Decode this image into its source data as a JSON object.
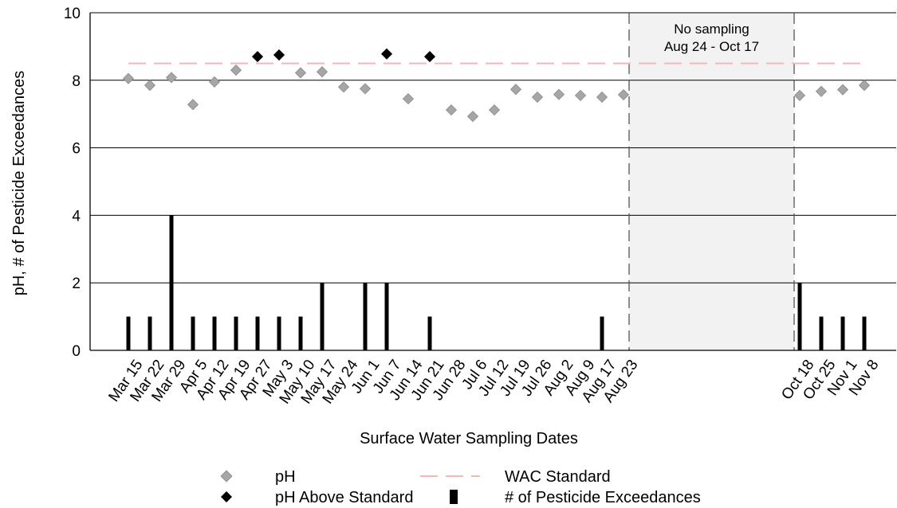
{
  "chart_data": {
    "type": "bar",
    "title": "",
    "xlabel": "Surface Water Sampling Dates",
    "ylabel": "pH, # of Pesticide Exceedances",
    "ylim": [
      0,
      10
    ],
    "yticks": [
      "0",
      "2",
      "4",
      "6",
      "8",
      "10"
    ],
    "grid": "horizontal",
    "categories": [
      "Mar 15",
      "Mar 22",
      "Mar 29",
      "Apr 5",
      "Apr 12",
      "Apr 19",
      "Apr 27",
      "May 3",
      "May 10",
      "May 17",
      "May 24",
      "Jun 1",
      "Jun 7",
      "Jun 14",
      "Jun 21",
      "Jun 28",
      "Jul 6",
      "Jul 12",
      "Jul 19",
      "Jul 26",
      "Aug 2",
      "Aug 9",
      "Aug 17",
      "Aug 23",
      "Oct 18",
      "Oct 25",
      "Nov 1",
      "Nov 8"
    ],
    "series": [
      {
        "name": "pH",
        "type": "scatter",
        "color": "#a6a6a6",
        "values": [
          8.05,
          7.85,
          8.08,
          7.28,
          7.95,
          8.3,
          null,
          null,
          8.22,
          8.25,
          7.8,
          7.75,
          null,
          7.45,
          null,
          7.12,
          6.93,
          7.12,
          7.73,
          7.5,
          7.58,
          7.55,
          7.5,
          7.57,
          7.55,
          7.67,
          7.72,
          7.85
        ]
      },
      {
        "name": "pH Above Standard",
        "type": "scatter",
        "color": "#000000",
        "values": [
          null,
          null,
          null,
          null,
          null,
          null,
          8.7,
          8.75,
          null,
          null,
          null,
          null,
          8.78,
          null,
          8.7,
          null,
          null,
          null,
          null,
          null,
          null,
          null,
          null,
          null,
          null,
          null,
          null,
          null
        ]
      },
      {
        "name": "# of Pesticide Exceedances",
        "type": "bar",
        "color": "#000000",
        "values": [
          1,
          1,
          4,
          1,
          1,
          1,
          1,
          1,
          1,
          2,
          0,
          2,
          2,
          0,
          1,
          0,
          0,
          0,
          0,
          0,
          0,
          0,
          1,
          0,
          2,
          1,
          1,
          1
        ]
      },
      {
        "name": "WAC Standard",
        "type": "line",
        "color": "#f2b8b5",
        "value": 8.5
      }
    ],
    "annotation": {
      "line1": "No sampling",
      "line2": "Aug 24 - Oct 17"
    },
    "legend_position": "bottom"
  }
}
